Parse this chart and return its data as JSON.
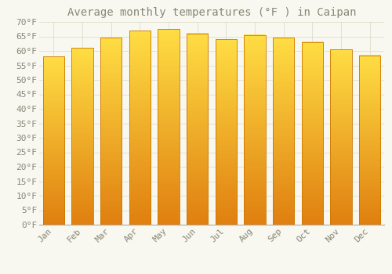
{
  "title": "Average monthly temperatures (°F ) in Caipan",
  "months": [
    "Jan",
    "Feb",
    "Mar",
    "Apr",
    "May",
    "Jun",
    "Jul",
    "Aug",
    "Sep",
    "Oct",
    "Nov",
    "Dec"
  ],
  "values": [
    58,
    61,
    64.5,
    67,
    67.5,
    66,
    64,
    65.5,
    64.5,
    63,
    60.5,
    58.5
  ],
  "bar_color_top": "#FFDD44",
  "bar_color_bottom": "#E08010",
  "bar_edge_color": "#CC7700",
  "ylim": [
    0,
    70
  ],
  "yticks": [
    0,
    5,
    10,
    15,
    20,
    25,
    30,
    35,
    40,
    45,
    50,
    55,
    60,
    65,
    70
  ],
  "ytick_labels": [
    "0°F",
    "5°F",
    "10°F",
    "15°F",
    "20°F",
    "25°F",
    "30°F",
    "35°F",
    "40°F",
    "45°F",
    "50°F",
    "55°F",
    "60°F",
    "65°F",
    "70°F"
  ],
  "background_color": "#F8F8F0",
  "grid_color": "#DDDDCC",
  "title_fontsize": 10,
  "tick_fontsize": 8,
  "font_color": "#888877"
}
